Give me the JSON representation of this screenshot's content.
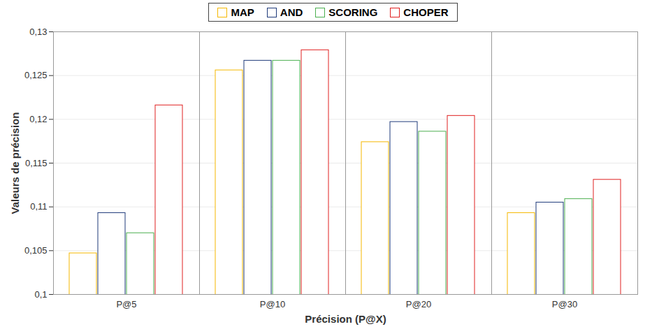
{
  "chart_data": {
    "type": "bar",
    "x_label": "Précision (P@X)",
    "y_label": "Valeurs de précision",
    "categories": [
      "P@5",
      "P@10",
      "P@20",
      "P@30"
    ],
    "series": [
      {
        "name": "MAP",
        "color": "#f5b800",
        "values": [
          0.1047,
          0.1256,
          0.1174,
          0.1093
        ]
      },
      {
        "name": "AND",
        "color": "#1f3a7a",
        "values": [
          0.1093,
          0.1267,
          0.1197,
          0.1105
        ]
      },
      {
        "name": "SCORING",
        "color": "#4caf50",
        "values": [
          0.107,
          0.1267,
          0.1186,
          0.1109
        ]
      },
      {
        "name": "CHOPER",
        "color": "#e02020",
        "values": [
          0.1216,
          0.1279,
          0.1204,
          0.1131
        ]
      }
    ],
    "ylim": [
      0.1,
      0.13
    ],
    "yticks": [
      {
        "value": 0.1,
        "label": "0,1"
      },
      {
        "value": 0.105,
        "label": "0,105"
      },
      {
        "value": 0.11,
        "label": "0,11"
      },
      {
        "value": 0.115,
        "label": "0,115"
      },
      {
        "value": 0.12,
        "label": "0,12"
      },
      {
        "value": 0.125,
        "label": "0,125"
      },
      {
        "value": 0.13,
        "label": "0,13"
      }
    ],
    "grid": true,
    "legend": "top"
  }
}
